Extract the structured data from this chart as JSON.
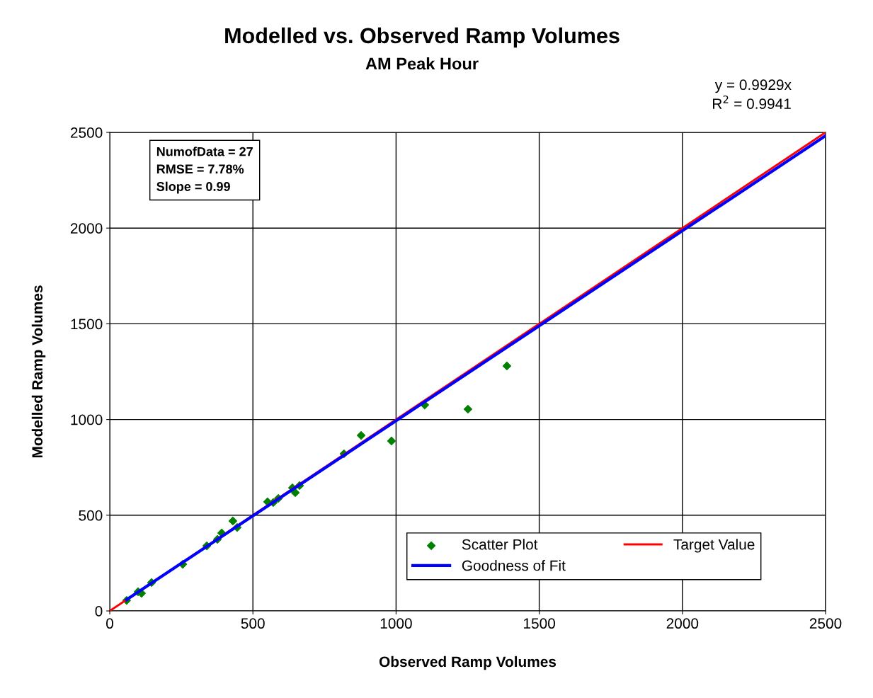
{
  "chart_data": {
    "type": "scatter",
    "title": "Modelled vs. Observed Ramp Volumes",
    "subtitle": "AM Peak Hour",
    "xlabel": "Observed Ramp Volumes",
    "ylabel": "Modelled Ramp Volumes",
    "annotations": [
      "NumofData = 27\nRMSE = 7.78%\nSlope = 0.99",
      "y = 0.9929x\nR$^{2}$ = 0.9941"
    ],
    "xlim": [
      0,
      2500
    ],
    "ylim": [
      0,
      2500
    ],
    "xticks": [
      0,
      500,
      1000,
      1500,
      2000,
      2500
    ],
    "yticks": [
      0,
      500,
      1000,
      1500,
      2000,
      2500
    ],
    "grid": true,
    "legend": "bottom right",
    "series": [
      {
        "name": "Scatter Plot",
        "marker": "diamond",
        "color": "#008000",
        "x": [
          59,
          99,
          111,
          146,
          255,
          339,
          376,
          391,
          430,
          445,
          551,
          571,
          589,
          638,
          648,
          663,
          818,
          878,
          984,
          1100,
          1251,
          1387
        ],
        "values": [
          55,
          100,
          92,
          148,
          244,
          340,
          374,
          407,
          470,
          436,
          570,
          566,
          588,
          643,
          618,
          655,
          821,
          917,
          888,
          1076,
          1054,
          1280
        ]
      },
      {
        "name": "Target Value",
        "type": "line",
        "color": "#ff0000",
        "x": [
          0,
          2500
        ],
        "values": [
          0,
          2500
        ]
      },
      {
        "name": "Goodness of Fit",
        "type": "line",
        "color": "#0000ff",
        "x": [
          59,
          2500
        ],
        "values": [
          59,
          2482
        ]
      }
    ]
  }
}
